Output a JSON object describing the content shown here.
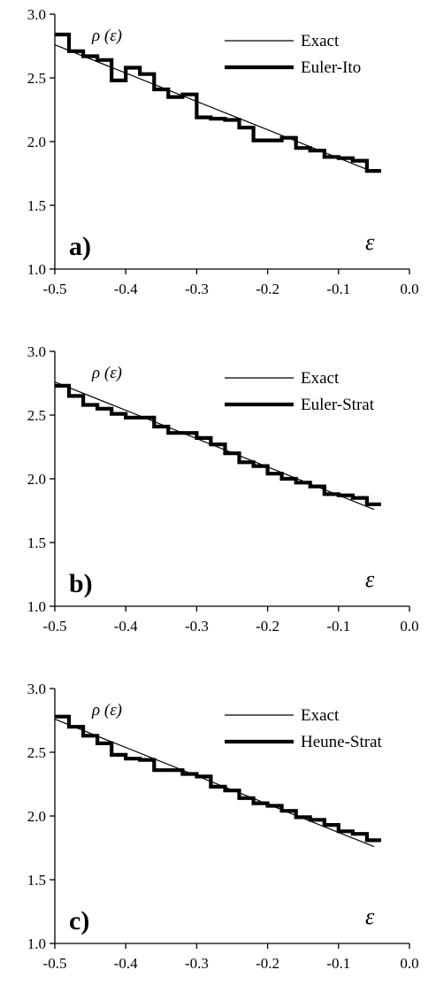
{
  "chart_data": [
    {
      "type": "line",
      "panel_label": "a)",
      "ylabel": "ρ (ε)",
      "xlabel": "ε",
      "xlim": [
        -0.5,
        0.0
      ],
      "ylim": [
        1.0,
        3.0
      ],
      "xticks": [
        "-0.5",
        "-0.4",
        "-0.3",
        "-0.2",
        "-0.1",
        "0.0"
      ],
      "yticks": [
        "1.0",
        "1.5",
        "2.0",
        "2.5",
        "3.0"
      ],
      "legend_position": "top-right",
      "series": [
        {
          "name": "Exact",
          "style": "thin-line",
          "x": [
            -0.5,
            -0.05
          ],
          "y": [
            2.76,
            1.76
          ]
        },
        {
          "name": "Euler-Ito",
          "style": "thick-step",
          "x": [
            -0.5,
            -0.48,
            -0.46,
            -0.44,
            -0.42,
            -0.4,
            -0.38,
            -0.36,
            -0.34,
            -0.32,
            -0.3,
            -0.28,
            -0.26,
            -0.24,
            -0.22,
            -0.2,
            -0.18,
            -0.16,
            -0.14,
            -0.12,
            -0.1,
            -0.08,
            -0.06
          ],
          "y": [
            2.84,
            2.71,
            2.67,
            2.64,
            2.48,
            2.58,
            2.53,
            2.41,
            2.35,
            2.37,
            2.19,
            2.18,
            2.17,
            2.11,
            2.01,
            2.01,
            2.03,
            1.95,
            1.93,
            1.88,
            1.87,
            1.85,
            1.77
          ]
        }
      ]
    },
    {
      "type": "line",
      "panel_label": "b)",
      "ylabel": "ρ (ε)",
      "xlabel": "ε",
      "xlim": [
        -0.5,
        0.0
      ],
      "ylim": [
        1.0,
        3.0
      ],
      "xticks": [
        "-0.5",
        "-0.4",
        "-0.3",
        "-0.2",
        "-0.1",
        "0.0"
      ],
      "yticks": [
        "1.0",
        "1.5",
        "2.0",
        "2.5",
        "3.0"
      ],
      "legend_position": "top-right",
      "series": [
        {
          "name": "Exact",
          "style": "thin-line",
          "x": [
            -0.5,
            -0.05
          ],
          "y": [
            2.76,
            1.76
          ]
        },
        {
          "name": "Euler-Strat",
          "style": "thick-step",
          "x": [
            -0.5,
            -0.48,
            -0.46,
            -0.44,
            -0.42,
            -0.4,
            -0.38,
            -0.36,
            -0.34,
            -0.32,
            -0.3,
            -0.28,
            -0.26,
            -0.24,
            -0.22,
            -0.2,
            -0.18,
            -0.16,
            -0.14,
            -0.12,
            -0.1,
            -0.08,
            -0.06
          ],
          "y": [
            2.73,
            2.65,
            2.58,
            2.55,
            2.51,
            2.48,
            2.48,
            2.41,
            2.36,
            2.36,
            2.32,
            2.27,
            2.2,
            2.13,
            2.1,
            2.04,
            2.0,
            1.97,
            1.94,
            1.88,
            1.87,
            1.85,
            1.8
          ]
        }
      ]
    },
    {
      "type": "line",
      "panel_label": "c)",
      "ylabel": "ρ (ε)",
      "xlabel": "ε",
      "xlim": [
        -0.5,
        0.0
      ],
      "ylim": [
        1.0,
        3.0
      ],
      "xticks": [
        "-0.5",
        "-0.4",
        "-0.3",
        "-0.2",
        "-0.1",
        "0.0"
      ],
      "yticks": [
        "1.0",
        "1.5",
        "2.0",
        "2.5",
        "3.0"
      ],
      "legend_position": "top-right",
      "series": [
        {
          "name": "Exact",
          "style": "thin-line",
          "x": [
            -0.5,
            -0.05
          ],
          "y": [
            2.76,
            1.76
          ]
        },
        {
          "name": "Heune-Strat",
          "style": "thick-step",
          "x": [
            -0.5,
            -0.48,
            -0.46,
            -0.44,
            -0.42,
            -0.4,
            -0.38,
            -0.36,
            -0.34,
            -0.32,
            -0.3,
            -0.28,
            -0.26,
            -0.24,
            -0.22,
            -0.2,
            -0.18,
            -0.16,
            -0.14,
            -0.12,
            -0.1,
            -0.08,
            -0.06
          ],
          "y": [
            2.78,
            2.7,
            2.63,
            2.57,
            2.48,
            2.45,
            2.44,
            2.36,
            2.36,
            2.33,
            2.31,
            2.23,
            2.2,
            2.14,
            2.1,
            2.08,
            2.04,
            1.99,
            1.97,
            1.93,
            1.88,
            1.86,
            1.81
          ]
        }
      ]
    }
  ]
}
